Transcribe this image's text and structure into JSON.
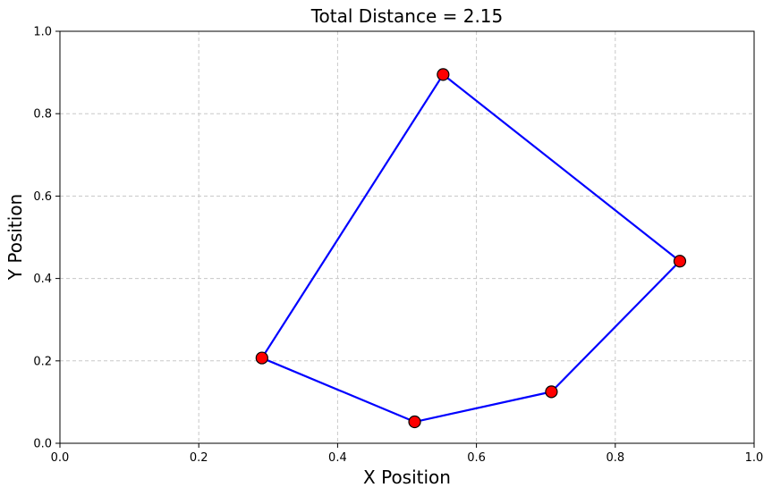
{
  "chart_data": {
    "type": "line",
    "title": "Total Distance = 2.15",
    "xlabel": "X Position",
    "ylabel": "Y Position",
    "xlim": [
      0.0,
      1.0
    ],
    "ylim": [
      0.0,
      1.0
    ],
    "xticks": [
      "0.0",
      "0.2",
      "0.4",
      "0.6",
      "0.8",
      "1.0"
    ],
    "yticks": [
      "0.0",
      "0.2",
      "0.4",
      "0.6",
      "0.8",
      "1.0"
    ],
    "grid": true,
    "closed_path": true,
    "colors": {
      "line": "#0000ff",
      "marker_fill": "#ff0000",
      "marker_edge": "#000000",
      "grid": "#c8c8c8"
    },
    "series": [
      {
        "x": [
          0.291,
          0.511,
          0.708,
          0.893,
          0.552
        ],
        "y": [
          0.207,
          0.052,
          0.125,
          0.442,
          0.895
        ]
      }
    ]
  }
}
